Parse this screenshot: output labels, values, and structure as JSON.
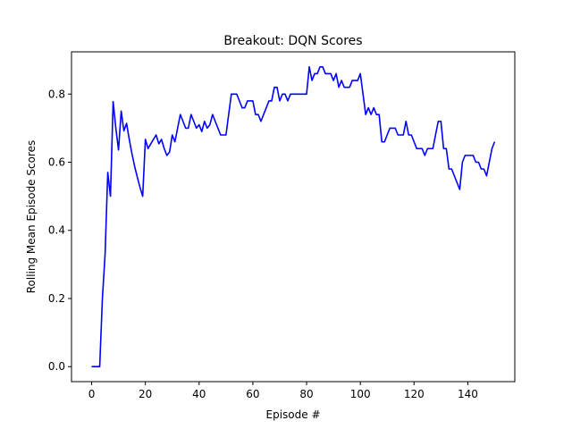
{
  "chart_data": {
    "type": "line",
    "title": "Breakout: DQN Scores",
    "xlabel": "Episode #",
    "ylabel": "Rolling Mean Episode Scores",
    "xlim": [
      -7.5,
      157.5
    ],
    "ylim": [
      -0.044,
      0.924
    ],
    "xticks": [
      0,
      20,
      40,
      60,
      80,
      100,
      120,
      140
    ],
    "yticks": [
      0.0,
      0.2,
      0.4,
      0.6,
      0.8
    ],
    "ytick_labels": [
      "0.0",
      "0.2",
      "0.4",
      "0.6",
      "0.8"
    ],
    "grid": false,
    "line_color": "#0000ff",
    "series": [
      {
        "x": [
          0,
          1,
          2,
          3,
          4,
          5,
          6,
          7,
          8,
          9,
          10,
          11,
          12,
          13,
          14,
          15,
          16,
          17,
          18,
          19,
          20,
          21,
          22,
          23,
          24,
          25,
          26,
          27,
          28,
          29,
          30,
          31,
          32,
          33,
          34,
          35,
          36,
          37,
          38,
          39,
          40,
          41,
          42,
          43,
          44,
          45,
          46,
          47,
          48,
          49,
          50,
          51,
          52,
          53,
          54,
          55,
          56,
          57,
          58,
          59,
          60,
          61,
          62,
          63,
          64,
          65,
          66,
          67,
          68,
          69,
          70,
          71,
          72,
          73,
          74,
          75,
          76,
          77,
          78,
          79,
          80,
          81,
          82,
          83,
          84,
          85,
          86,
          87,
          88,
          89,
          90,
          91,
          92,
          93,
          94,
          95,
          96,
          97,
          98,
          99,
          100,
          101,
          102,
          103,
          104,
          105,
          106,
          107,
          108,
          109,
          110,
          111,
          112,
          113,
          114,
          115,
          116,
          117,
          118,
          119,
          120,
          121,
          122,
          123,
          124,
          125,
          126,
          127,
          128,
          129,
          130,
          131,
          132,
          133,
          134,
          135,
          136,
          137,
          138,
          139,
          140,
          141,
          142,
          143,
          144,
          145,
          146,
          147,
          148,
          149,
          150
        ],
        "values": [
          0.0,
          0.0,
          0.0,
          0.0,
          0.2,
          0.33,
          0.57,
          0.5,
          0.778,
          0.7,
          0.636,
          0.75,
          0.692,
          0.714,
          0.667,
          0.625,
          0.588,
          0.556,
          0.526,
          0.5,
          0.667,
          0.64,
          0.654,
          0.667,
          0.68,
          0.654,
          0.667,
          0.64,
          0.62,
          0.63,
          0.68,
          0.66,
          0.7,
          0.74,
          0.72,
          0.7,
          0.7,
          0.74,
          0.72,
          0.7,
          0.71,
          0.69,
          0.72,
          0.7,
          0.71,
          0.74,
          0.72,
          0.7,
          0.68,
          0.68,
          0.68,
          0.74,
          0.8,
          0.8,
          0.8,
          0.78,
          0.76,
          0.76,
          0.78,
          0.78,
          0.78,
          0.74,
          0.74,
          0.72,
          0.74,
          0.76,
          0.78,
          0.78,
          0.82,
          0.82,
          0.78,
          0.8,
          0.8,
          0.78,
          0.8,
          0.8,
          0.8,
          0.8,
          0.8,
          0.8,
          0.8,
          0.88,
          0.84,
          0.86,
          0.86,
          0.88,
          0.88,
          0.86,
          0.86,
          0.86,
          0.84,
          0.86,
          0.82,
          0.84,
          0.82,
          0.82,
          0.82,
          0.84,
          0.84,
          0.84,
          0.86,
          0.8,
          0.74,
          0.76,
          0.74,
          0.76,
          0.74,
          0.74,
          0.66,
          0.66,
          0.68,
          0.7,
          0.7,
          0.7,
          0.68,
          0.68,
          0.68,
          0.72,
          0.68,
          0.68,
          0.66,
          0.64,
          0.64,
          0.64,
          0.62,
          0.64,
          0.64,
          0.64,
          0.68,
          0.72,
          0.72,
          0.64,
          0.64,
          0.58,
          0.58,
          0.56,
          0.54,
          0.52,
          0.6,
          0.62,
          0.62,
          0.62,
          0.62,
          0.6,
          0.6,
          0.58,
          0.58,
          0.56,
          0.6,
          0.64,
          0.66
        ]
      }
    ]
  }
}
